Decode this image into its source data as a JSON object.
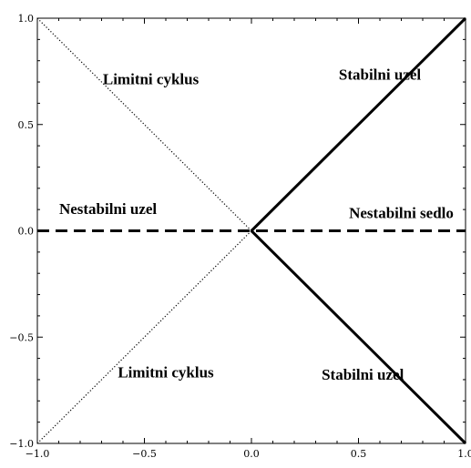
{
  "chart_data": {
    "type": "line",
    "xlim": [
      -1.0,
      1.0
    ],
    "ylim": [
      -1.0,
      1.0
    ],
    "grid": false,
    "xticks": [
      -1.0,
      -0.5,
      0.0,
      0.5,
      1.0
    ],
    "xtick_labels": [
      "−1.0",
      "−0.5",
      "0.0",
      "0.5",
      "1.0"
    ],
    "yticks": [
      -1.0,
      -0.5,
      0.0,
      0.5,
      1.0
    ],
    "ytick_labels": [
      "−1.0",
      "−0.5",
      "0.0",
      "0.5",
      "1.0"
    ],
    "series": [
      {
        "style": "dotted",
        "color": "#000000",
        "x": [
          -1.0,
          0.0
        ],
        "y": [
          1.0,
          0.0
        ]
      },
      {
        "style": "dotted",
        "color": "#000000",
        "x": [
          -1.0,
          0.0
        ],
        "y": [
          -1.0,
          0.0
        ]
      },
      {
        "style": "solid",
        "color": "#000000",
        "x": [
          0.0,
          1.0
        ],
        "y": [
          0.0,
          1.0
        ]
      },
      {
        "style": "solid",
        "color": "#000000",
        "x": [
          0.0,
          1.0
        ],
        "y": [
          0.0,
          -1.0
        ]
      },
      {
        "style": "dashed",
        "color": "#000000",
        "x": [
          -1.0,
          1.0
        ],
        "y": [
          0.0,
          0.0
        ]
      }
    ],
    "annotations": [
      {
        "text": "Limitni cyklus",
        "x": -0.47,
        "y": 0.69
      },
      {
        "text": "Stabilni uzel",
        "x": 0.6,
        "y": 0.71
      },
      {
        "text": "Nestabilni uzel",
        "x": -0.67,
        "y": 0.08
      },
      {
        "text": "Nestabilni sedlo",
        "x": 0.7,
        "y": 0.06
      },
      {
        "text": "Limitni cyklus",
        "x": -0.4,
        "y": -0.69
      },
      {
        "text": "Stabilni uzel",
        "x": 0.52,
        "y": -0.7
      }
    ]
  }
}
